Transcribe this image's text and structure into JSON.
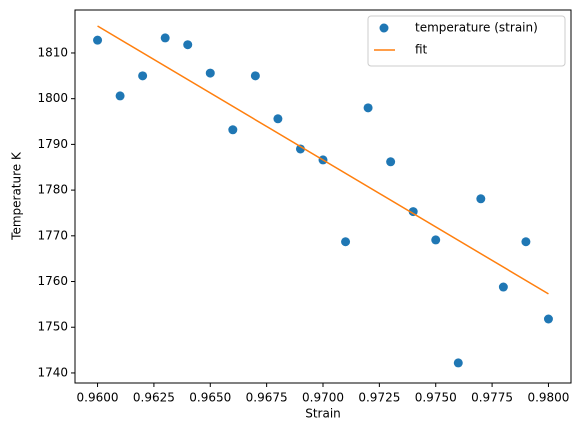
{
  "chart_data": {
    "type": "scatter",
    "xlabel": "Strain",
    "ylabel": "Temperature K",
    "xlim": [
      0.959,
      0.981
    ],
    "ylim": [
      1737.8,
      1819.4
    ],
    "xticks": [
      {
        "value": 0.96,
        "label": "0.9600"
      },
      {
        "value": 0.9625,
        "label": "0.9625"
      },
      {
        "value": 0.965,
        "label": "0.9650"
      },
      {
        "value": 0.9675,
        "label": "0.9675"
      },
      {
        "value": 0.97,
        "label": "0.9700"
      },
      {
        "value": 0.9725,
        "label": "0.9725"
      },
      {
        "value": 0.975,
        "label": "0.9750"
      },
      {
        "value": 0.9775,
        "label": "0.9775"
      },
      {
        "value": 0.98,
        "label": "0.9800"
      }
    ],
    "yticks": [
      1740,
      1750,
      1760,
      1770,
      1780,
      1790,
      1800,
      1810
    ],
    "legend": "upper right",
    "series": [
      {
        "name": "temperature (strain)",
        "type": "scatter",
        "color": "#1f77b4",
        "x": [
          0.96,
          0.961,
          0.962,
          0.963,
          0.964,
          0.965,
          0.966,
          0.967,
          0.968,
          0.969,
          0.97,
          0.971,
          0.972,
          0.973,
          0.974,
          0.975,
          0.976,
          0.977,
          0.978,
          0.979,
          0.98
        ],
        "values": [
          1812.8,
          1800.6,
          1805.0,
          1813.3,
          1811.8,
          1805.6,
          1793.2,
          1805.0,
          1795.6,
          1789.0,
          1786.6,
          1768.7,
          1798.0,
          1786.2,
          1775.3,
          1769.1,
          1742.2,
          1778.1,
          1758.8,
          1768.7,
          1751.8
        ]
      },
      {
        "name": "fit",
        "type": "line",
        "color": "#ff7f0e",
        "x": [
          0.96,
          0.98
        ],
        "values": [
          1815.9,
          1757.3
        ]
      }
    ]
  }
}
